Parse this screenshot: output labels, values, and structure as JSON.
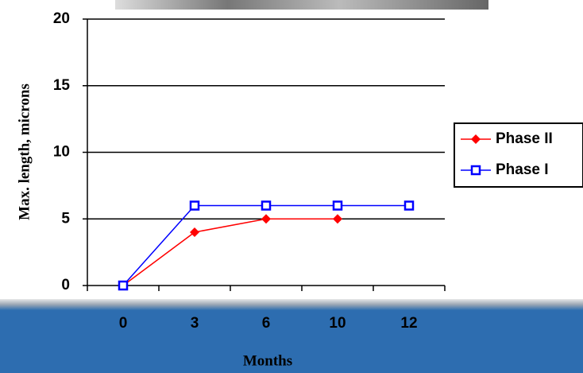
{
  "chart_data": {
    "type": "line",
    "x_label": "Months",
    "y_label": "Max. length, microns",
    "categories": [
      "0",
      "3",
      "6",
      "10",
      "12"
    ],
    "series": [
      {
        "name": "Phase II",
        "color": "#ff0000",
        "marker": "diamond",
        "values": [
          0,
          4,
          5,
          5,
          null
        ]
      },
      {
        "name": "Phase I",
        "color": "#0000ff",
        "marker": "square",
        "values": [
          0,
          6,
          6,
          6,
          6
        ]
      }
    ],
    "ylim": [
      0,
      20
    ],
    "yticks": [
      0,
      5,
      10,
      15,
      20
    ],
    "grid": true,
    "legend": "right"
  }
}
